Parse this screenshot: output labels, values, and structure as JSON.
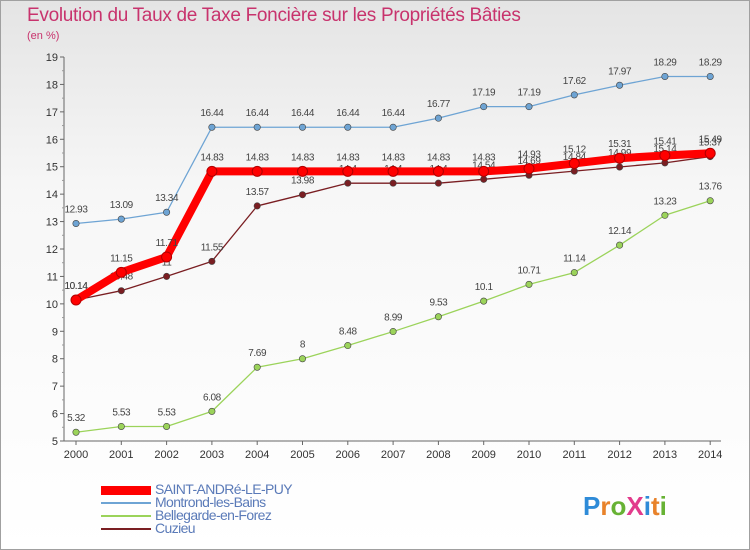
{
  "title": "Evolution du Taux de Taxe Foncière sur les Propriétés Bâties",
  "subtitle": "(en %)",
  "logo": {
    "text": "ProXiti",
    "colors": [
      "#2e8bd8",
      "#e8822a",
      "#67b234",
      "#e23b8c",
      "#2e8bd8",
      "#e8822a",
      "#67b234"
    ]
  },
  "chart_data": {
    "type": "line",
    "x": [
      "2000",
      "2001",
      "2002",
      "2003",
      "2004",
      "2005",
      "2006",
      "2007",
      "2008",
      "2009",
      "2010",
      "2011",
      "2012",
      "2013",
      "2014"
    ],
    "ylim": [
      5,
      19
    ],
    "yticks": [
      "5",
      "6",
      "7",
      "8",
      "9",
      "10",
      "11",
      "12",
      "13",
      "14",
      "15",
      "16",
      "17",
      "18",
      "19"
    ],
    "grid": false,
    "legend_position": "bottom-left",
    "series": [
      {
        "name": "Montrond-les-Bains",
        "color": "#6ea4d4",
        "width": 1.3,
        "values": [
          12.93,
          13.09,
          13.34,
          16.44,
          16.44,
          16.44,
          16.44,
          16.44,
          16.77,
          17.19,
          17.19,
          17.62,
          17.97,
          18.29,
          18.29
        ],
        "labels": [
          "12.93",
          "13.09",
          "13.34",
          "16.44",
          "16.44",
          "16.44",
          "16.44",
          "16.44",
          "16.77",
          "17.19",
          "17.19",
          "17.62",
          "17.97",
          "18.29",
          "18.29"
        ]
      },
      {
        "name": "Bellegarde-en-Forez",
        "color": "#9bd35a",
        "width": 1.3,
        "values": [
          5.32,
          5.53,
          5.53,
          6.08,
          7.69,
          8.0,
          8.48,
          8.99,
          9.53,
          10.1,
          10.71,
          11.14,
          12.14,
          13.23,
          13.76
        ],
        "labels": [
          "5.32",
          "5.53",
          "5.53",
          "6.08",
          "7.69",
          "8",
          "8.48",
          "8.99",
          "9.53",
          "10.1",
          "10.71",
          "11.14",
          "12.14",
          "13.23",
          "13.76"
        ]
      },
      {
        "name": "Cuzieu",
        "color": "#7a1e22",
        "width": 1.3,
        "values": [
          10.14,
          10.48,
          11.0,
          11.55,
          13.57,
          13.98,
          14.4,
          14.4,
          14.4,
          14.54,
          14.69,
          14.84,
          14.99,
          15.14,
          15.37
        ],
        "labels": [
          "10.14",
          "10.48",
          "11",
          "11.55",
          "13.57",
          "13.98",
          "14.4",
          "14.4",
          "14.4",
          "14.54",
          "14.69",
          "14.84",
          "14.99",
          "15.14",
          "15.37"
        ]
      },
      {
        "name": "SAINT-ANDRé-LE-PUY",
        "color": "#ff0000",
        "width": 8,
        "values": [
          10.14,
          11.15,
          11.71,
          14.83,
          14.83,
          14.83,
          14.83,
          14.83,
          14.83,
          14.83,
          14.93,
          15.12,
          15.31,
          15.41,
          15.49
        ],
        "labels": [
          "10.14",
          "11.15",
          "11.71",
          "14.83",
          "14.83",
          "14.83",
          "14.83",
          "14.83",
          "14.83",
          "14.83",
          "14.93",
          "15.12",
          "15.31",
          "15.41",
          "15.49"
        ]
      }
    ],
    "legend_order": [
      "SAINT-ANDRé-LE-PUY",
      "Montrond-les-Bains",
      "Bellegarde-en-Forez",
      "Cuzieu"
    ]
  }
}
